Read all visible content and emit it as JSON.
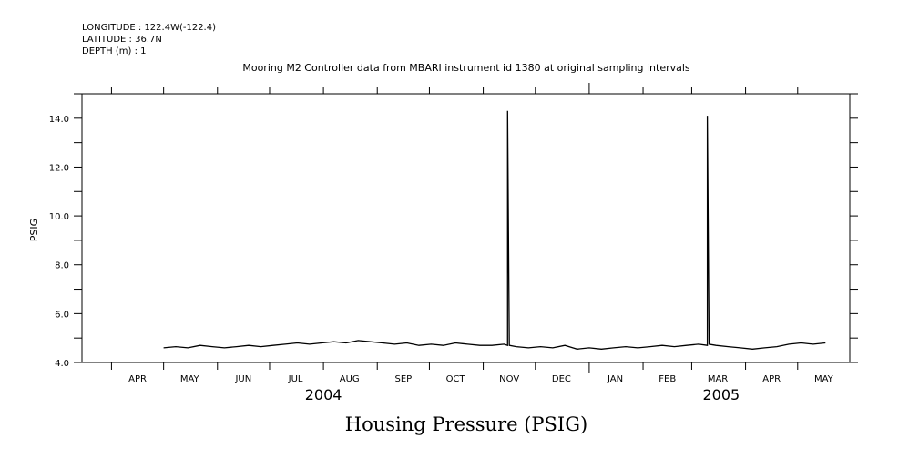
{
  "meta": {
    "longitude": "LONGITUDE : 122.4W(-122.4)",
    "latitude": "LATITUDE : 36.7N",
    "depth": "DEPTH (m) : 1"
  },
  "chart_data": {
    "type": "line",
    "title": "Mooring M2 Controller data from MBARI instrument id 1380 at original sampling intervals",
    "xlabel": "Housing Pressure (PSIG)",
    "ylabel": "PSIG",
    "ylim": [
      4.0,
      15.0
    ],
    "yticks": [
      4.0,
      6.0,
      8.0,
      10.0,
      12.0,
      14.0
    ],
    "ytick_labels": [
      "4.0",
      "6.0",
      "8.0",
      "10.0",
      "12.0",
      "14.0"
    ],
    "xlim": [
      "2004-03-15",
      "2005-05-31"
    ],
    "x_month_labels": [
      {
        "label": "APR",
        "date": "2004-04-16"
      },
      {
        "label": "MAY",
        "date": "2004-05-16"
      },
      {
        "label": "JUN",
        "date": "2004-06-16"
      },
      {
        "label": "JUL",
        "date": "2004-07-16"
      },
      {
        "label": "AUG",
        "date": "2004-08-16"
      },
      {
        "label": "SEP",
        "date": "2004-09-16"
      },
      {
        "label": "OCT",
        "date": "2004-10-16"
      },
      {
        "label": "NOV",
        "date": "2004-11-16"
      },
      {
        "label": "DEC",
        "date": "2004-12-16"
      },
      {
        "label": "JAN",
        "date": "2005-01-16"
      },
      {
        "label": "FEB",
        "date": "2005-02-15"
      },
      {
        "label": "MAR",
        "date": "2005-03-16"
      },
      {
        "label": "APR",
        "date": "2005-04-16"
      },
      {
        "label": "MAY",
        "date": "2005-05-16"
      }
    ],
    "x_year_labels": [
      {
        "label": "2004",
        "date": "2004-08-01"
      },
      {
        "label": "2005",
        "date": "2005-03-18"
      }
    ],
    "series": [
      {
        "color": "#000000",
        "x": [
          "2004-05-01",
          "2004-05-08",
          "2004-05-15",
          "2004-05-22",
          "2004-05-29",
          "2004-06-05",
          "2004-06-12",
          "2004-06-19",
          "2004-06-26",
          "2004-07-03",
          "2004-07-10",
          "2004-07-17",
          "2004-07-24",
          "2004-07-31",
          "2004-08-07",
          "2004-08-14",
          "2004-08-21",
          "2004-08-28",
          "2004-09-04",
          "2004-09-11",
          "2004-09-18",
          "2004-09-25",
          "2004-10-02",
          "2004-10-09",
          "2004-10-16",
          "2004-10-23",
          "2004-10-30",
          "2004-11-06",
          "2004-11-13",
          "2004-11-15",
          "2004-11-15",
          "2004-11-16",
          "2004-11-20",
          "2004-11-27",
          "2004-12-04",
          "2004-12-11",
          "2004-12-18",
          "2004-12-25",
          "2005-01-01",
          "2005-01-08",
          "2005-01-15",
          "2005-01-22",
          "2005-01-29",
          "2005-02-05",
          "2005-02-12",
          "2005-02-19",
          "2005-02-26",
          "2005-03-05",
          "2005-03-10",
          "2005-03-10",
          "2005-03-11",
          "2005-03-15",
          "2005-03-22",
          "2005-03-29",
          "2005-04-05",
          "2005-04-12",
          "2005-04-19",
          "2005-04-26",
          "2005-05-03",
          "2005-05-10",
          "2005-05-17"
        ],
        "y": [
          4.6,
          4.65,
          4.6,
          4.7,
          4.65,
          4.6,
          4.65,
          4.7,
          4.65,
          4.7,
          4.75,
          4.8,
          4.75,
          4.8,
          4.85,
          4.8,
          4.9,
          4.85,
          4.8,
          4.75,
          4.8,
          4.7,
          4.75,
          4.7,
          4.8,
          4.75,
          4.7,
          4.7,
          4.75,
          4.7,
          14.3,
          4.7,
          4.65,
          4.6,
          4.65,
          4.6,
          4.7,
          4.55,
          4.6,
          4.55,
          4.6,
          4.65,
          4.6,
          4.65,
          4.7,
          4.65,
          4.7,
          4.75,
          4.7,
          14.1,
          4.75,
          4.7,
          4.65,
          4.6,
          4.55,
          4.6,
          4.65,
          4.75,
          4.8,
          4.75,
          4.8
        ]
      }
    ],
    "grid": false
  }
}
